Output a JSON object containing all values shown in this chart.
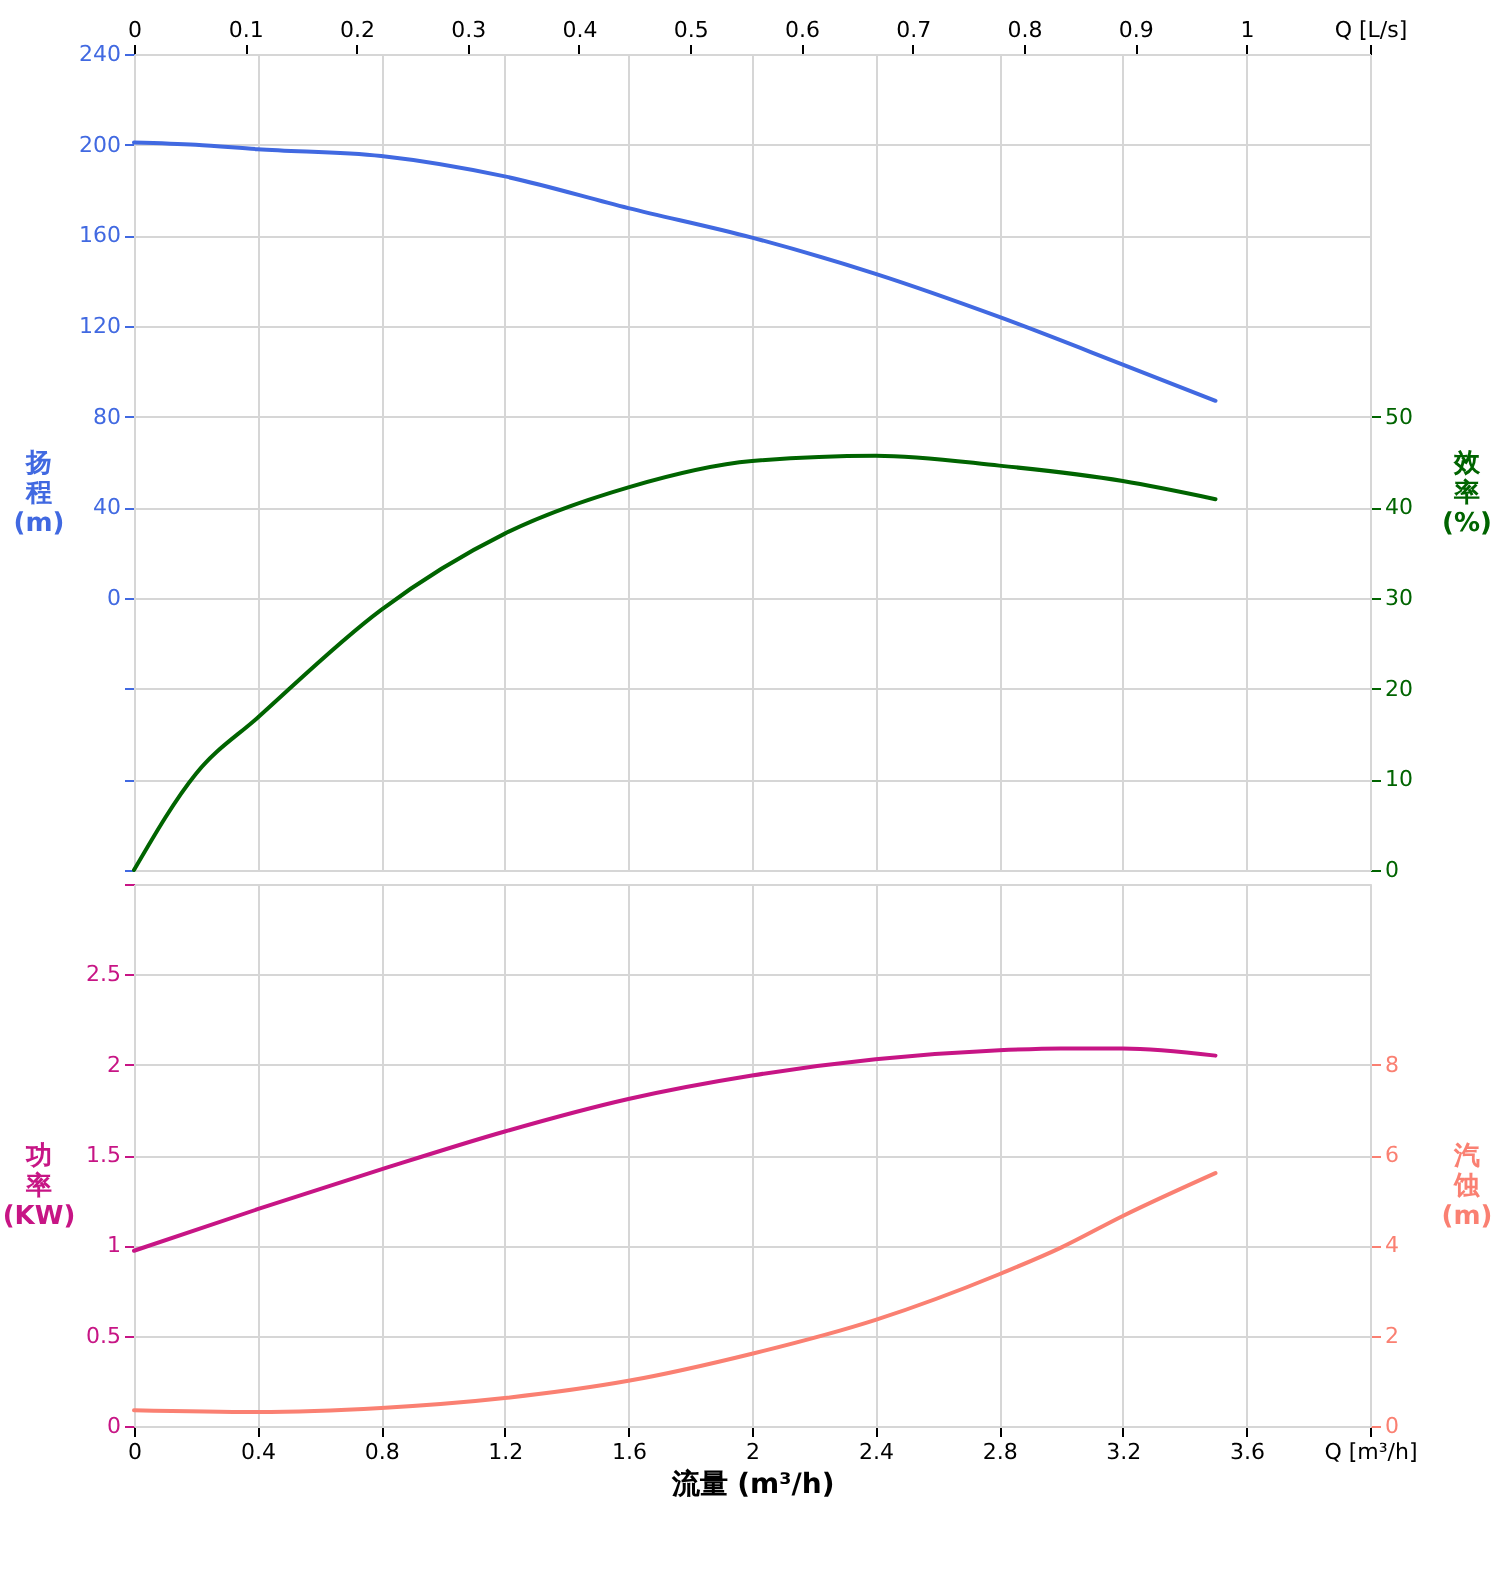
{
  "chart_data": [
    {
      "type": "line",
      "xlim": [
        0,
        4
      ],
      "xticks": [
        0,
        0.4,
        0.8,
        1.2,
        1.6,
        2,
        2.4,
        2.8,
        3.2,
        3.6,
        4
      ],
      "x2lim": [
        0,
        1.1111
      ],
      "x2ticks": [
        0,
        0.1,
        0.2,
        0.3,
        0.4,
        0.5,
        0.6,
        0.7,
        0.8,
        0.9,
        1,
        {
          "value": 1.1111,
          "label": "Q [L/s]"
        }
      ],
      "ylabel": "扬程 (m)",
      "ylim": [
        -120,
        240
      ],
      "yticks": [
        {
          "value": -120,
          "label": null
        },
        {
          "value": -80,
          "label": null
        },
        {
          "value": -40,
          "label": null
        },
        0,
        40,
        80,
        120,
        160,
        200,
        240
      ],
      "y2label": "效率 (%)",
      "y2lim": [
        0,
        90
      ],
      "y2ticks": [
        0,
        10,
        20,
        30,
        40,
        50
      ],
      "grid": true,
      "tick_labels": "y",
      "line_style": "solid",
      "marker": "none",
      "x": [
        0,
        0.2,
        0.4,
        0.8,
        1.2,
        1.6,
        2.0,
        2.4,
        2.8,
        3.2,
        3.5
      ],
      "series": [
        {
          "color": "#4169e1",
          "values": [
            201,
            200,
            198,
            195,
            186,
            172,
            159,
            143,
            124,
            103,
            87
          ]
        },
        {
          "color": "#006400",
          "axis": "y2",
          "values": [
            0,
            10.6,
            16.8,
            28.7,
            37.1,
            42.2,
            45.1,
            45.7,
            44.6,
            42.9,
            40.9
          ]
        }
      ]
    },
    {
      "type": "line",
      "xlim": [
        0,
        4
      ],
      "xticks": [
        0,
        0.4,
        0.8,
        1.2,
        1.6,
        2,
        2.4,
        2.8,
        3.2,
        3.6,
        {
          "value": 4,
          "label": "Q [m³/h]"
        }
      ],
      "xlabel": "流量 (m³/h)",
      "ylabel": "功率 (KW)",
      "ylim": [
        0,
        3
      ],
      "yticks": [
        0,
        0.5,
        1,
        1.5,
        2,
        2.5,
        {
          "value": 3,
          "label": null
        }
      ],
      "y2label": "汽蚀 (m)",
      "y2lim": [
        0,
        12
      ],
      "y2ticks": [
        0,
        2,
        4,
        6,
        8
      ],
      "grid": true,
      "line_style": "solid",
      "marker": "none",
      "x": [
        0,
        0.4,
        0.8,
        1.2,
        1.6,
        2.0,
        2.4,
        2.8,
        3.0,
        3.2,
        3.5
      ],
      "series": [
        {
          "color": "#c71585",
          "values": [
            0.97,
            1.2,
            1.42,
            1.63,
            1.81,
            1.94,
            2.03,
            2.08,
            2.09,
            2.09,
            2.05
          ]
        },
        {
          "color": "#fa8072",
          "axis": "y2",
          "values": [
            0.35,
            0.31,
            0.4,
            0.62,
            1.0,
            1.6,
            2.35,
            3.36,
            3.95,
            4.65,
            5.6
          ]
        }
      ]
    }
  ]
}
